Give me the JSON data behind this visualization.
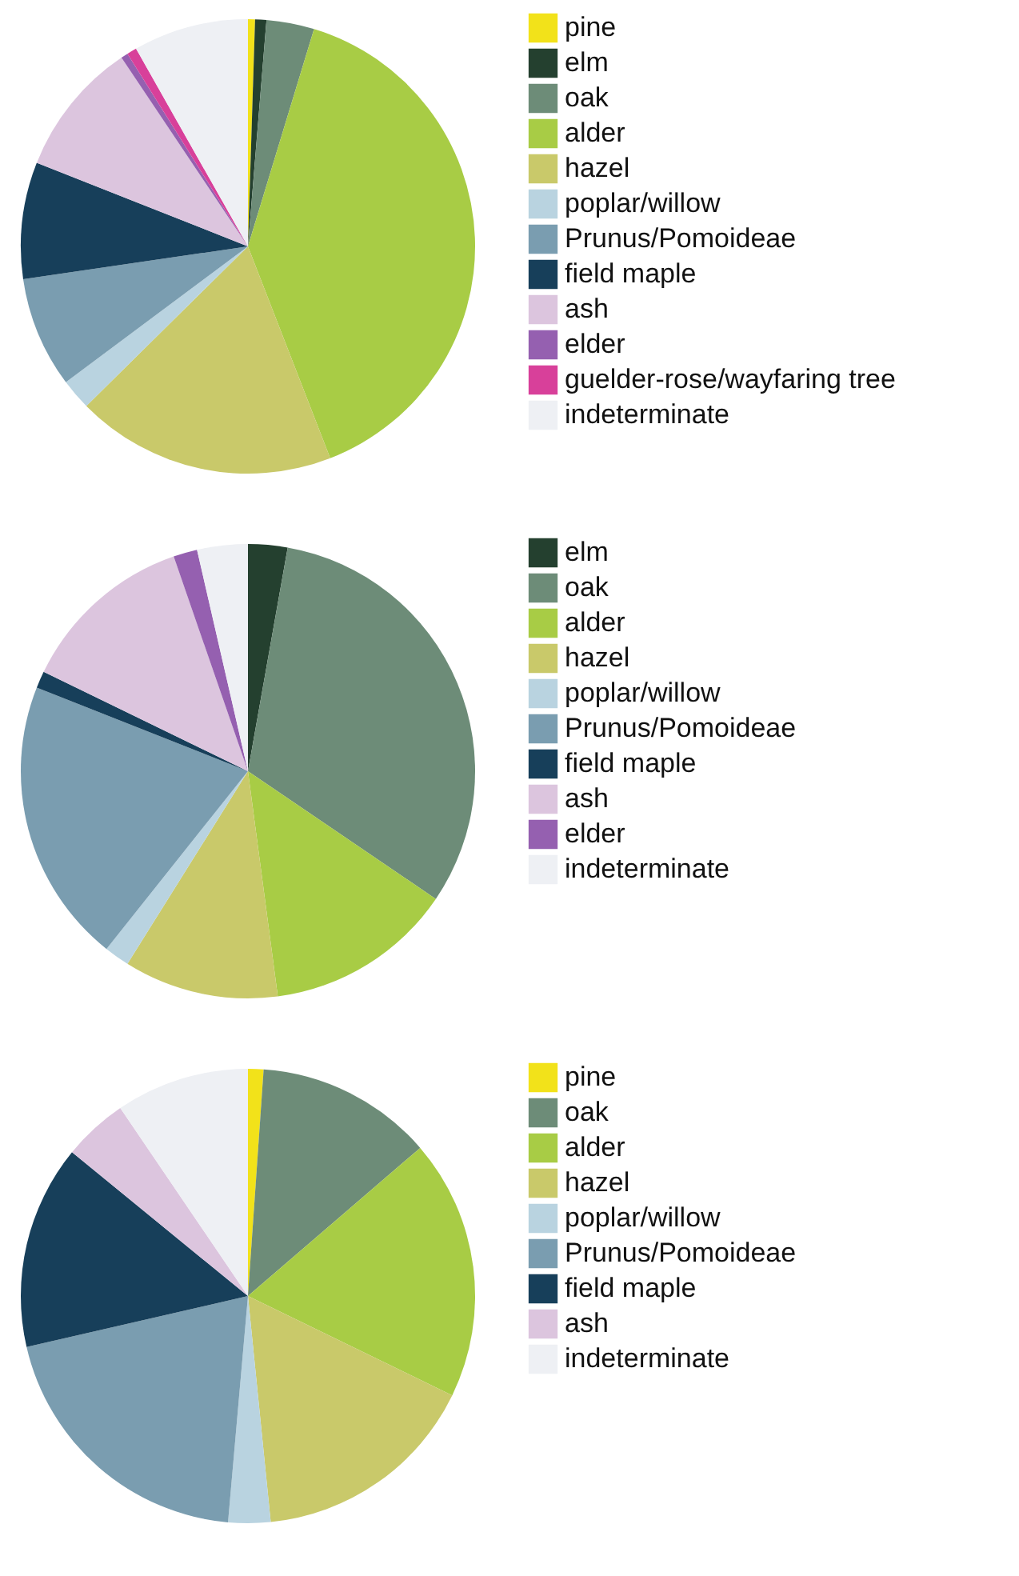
{
  "chart_data": [
    {
      "type": "pie",
      "legend": "right",
      "categories": [
        "pine",
        "elm",
        "oak",
        "alder",
        "hazel",
        "poplar/willow",
        "Prunus/Pomoideae",
        "field maple",
        "ash",
        "elder",
        "guelder-rose/wayfaring tree",
        "indeterminate"
      ],
      "values": [
        0.5,
        0.8,
        3.4,
        39.4,
        18.5,
        2.2,
        7.9,
        8.3,
        9.6,
        0.5,
        0.7,
        8.2
      ],
      "colors": [
        "#f2e21a",
        "#24402f",
        "#6d8c78",
        "#a8cc45",
        "#c9c96a",
        "#b9d3e0",
        "#7a9db0",
        "#173f5a",
        "#dcc5de",
        "#9560b0",
        "#d8409a",
        "#eef0f4"
      ]
    },
    {
      "type": "pie",
      "legend": "right",
      "categories": [
        "elm",
        "oak",
        "alder",
        "hazel",
        "poplar/willow",
        "Prunus/Pomoideae",
        "field maple",
        "ash",
        "elder",
        "indeterminate"
      ],
      "values": [
        2.8,
        31.7,
        13.4,
        11.0,
        1.8,
        20.3,
        1.2,
        12.5,
        1.7,
        3.6
      ],
      "colors": [
        "#24402f",
        "#6d8c78",
        "#a8cc45",
        "#c9c96a",
        "#b9d3e0",
        "#7a9db0",
        "#173f5a",
        "#dcc5de",
        "#9560b0",
        "#eef0f4"
      ]
    },
    {
      "type": "pie",
      "legend": "right",
      "categories": [
        "pine",
        "oak",
        "alder",
        "hazel",
        "poplar/willow",
        "Prunus/Pomoideae",
        "field maple",
        "ash",
        "indeterminate"
      ],
      "values": [
        1.1,
        12.6,
        18.5,
        16.2,
        3.0,
        20.0,
        14.5,
        4.6,
        9.5
      ],
      "colors": [
        "#f2e21a",
        "#6d8c78",
        "#a8cc45",
        "#c9c96a",
        "#b9d3e0",
        "#7a9db0",
        "#173f5a",
        "#dcc5de",
        "#eef0f4"
      ]
    }
  ]
}
